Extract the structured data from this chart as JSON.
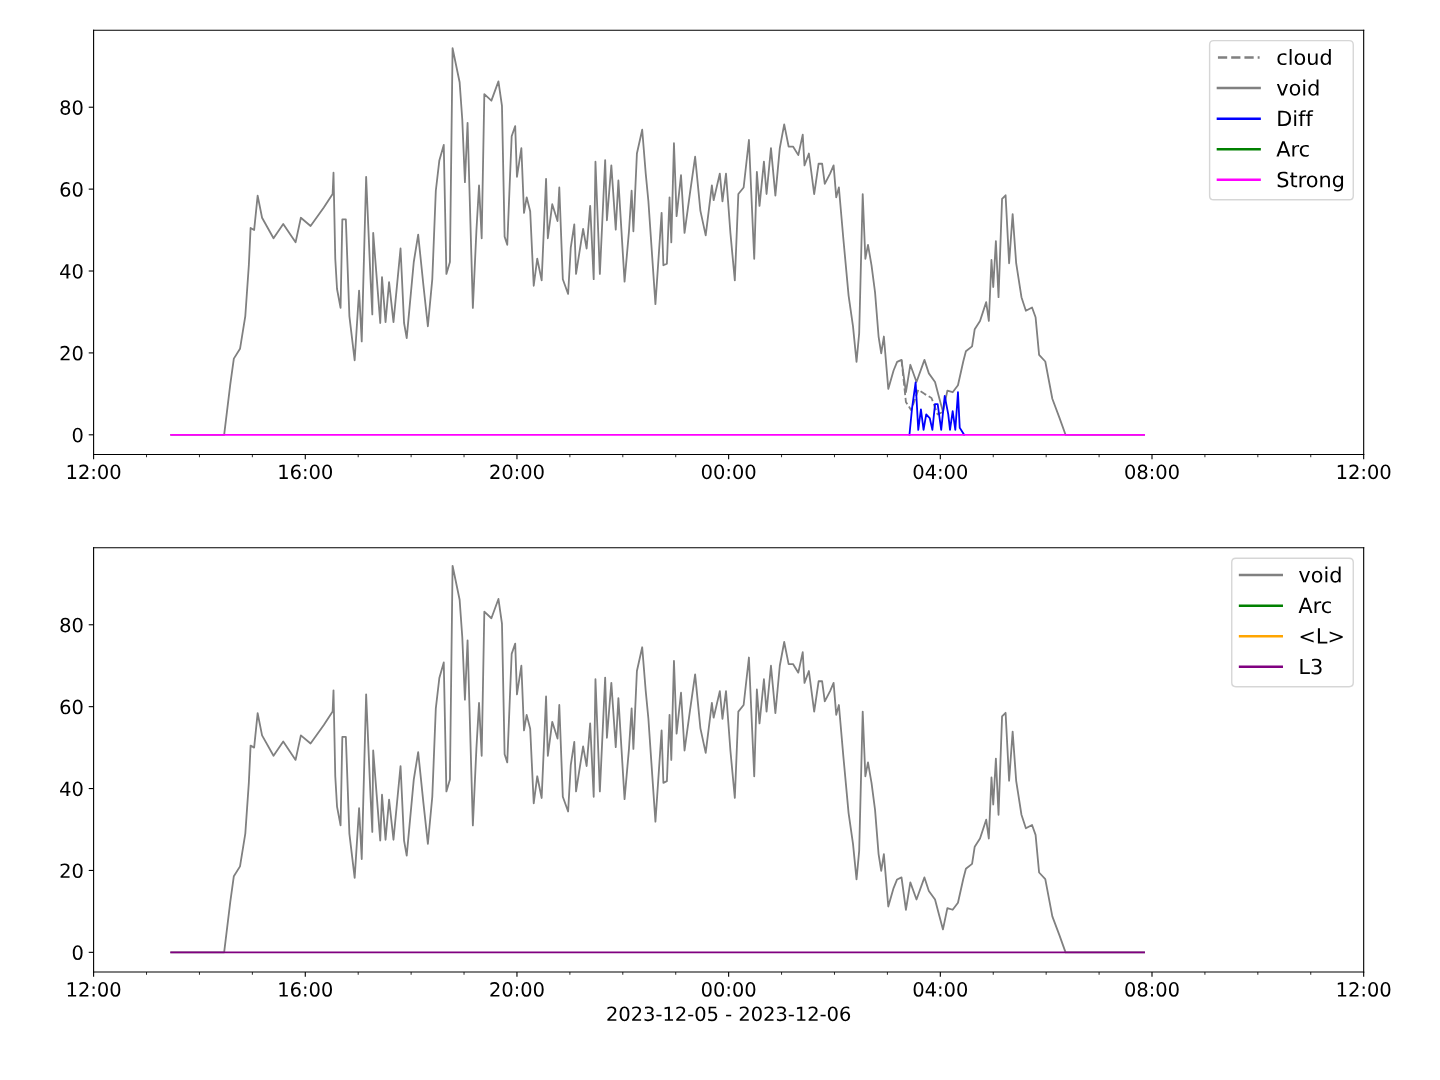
{
  "chart_data": [
    {
      "type": "line",
      "xlim": [
        "2023-12-05T12:00",
        "2023-12-06T12:00"
      ],
      "ylim": [
        -4.8,
        98.8
      ],
      "yticks": [
        0,
        20,
        40,
        60,
        80
      ],
      "xticks": [
        {
          "value": "2023-12-05T12:00",
          "label": "12:00"
        },
        {
          "value": "2023-12-05T16:00",
          "label": "16:00"
        },
        {
          "value": "2023-12-05T20:00",
          "label": "20:00"
        },
        {
          "value": "2023-12-06T00:00",
          "label": "00:00"
        },
        {
          "value": "2023-12-06T04:00",
          "label": "04:00"
        },
        {
          "value": "2023-12-06T08:00",
          "label": "08:00"
        },
        {
          "value": "2023-12-06T12:00",
          "label": "12:00"
        }
      ],
      "legend": "top right",
      "grid": false,
      "series": [
        {
          "name": "cloud",
          "color": "#808080",
          "line_style": "dashed",
          "x": [
            "2023-12-06T03:16",
            "2023-12-06T03:21",
            "2023-12-06T03:27",
            "2023-12-06T03:35",
            "2023-12-06T03:42",
            "2023-12-06T03:50",
            "2023-12-06T03:57",
            "2023-12-06T04:03"
          ],
          "values": [
            18.3,
            8,
            6,
            11,
            10,
            9,
            5,
            5.6
          ]
        },
        {
          "name": "void",
          "color": "#808080",
          "line_style": "solid",
          "x": [
            "2023-12-05T13:28",
            "2023-12-05T14:28",
            "2023-12-05T14:35",
            "2023-12-05T14:39",
            "2023-12-05T14:46",
            "2023-12-05T14:52",
            "2023-12-05T14:56",
            "2023-12-05T14:58",
            "2023-12-05T15:02",
            "2023-12-05T15:06",
            "2023-12-05T15:11",
            "2023-12-05T15:24",
            "2023-12-05T15:35",
            "2023-12-05T15:49",
            "2023-12-05T15:55",
            "2023-12-05T16:06",
            "2023-12-05T16:21",
            "2023-12-05T16:31",
            "2023-12-05T16:32",
            "2023-12-05T16:34",
            "2023-12-05T16:36",
            "2023-12-05T16:40",
            "2023-12-05T16:42",
            "2023-12-05T16:46",
            "2023-12-05T16:50",
            "2023-12-05T16:56",
            "2023-12-05T17:01",
            "2023-12-05T17:04",
            "2023-12-05T17:09",
            "2023-12-05T17:14",
            "2023-12-05T17:16",
            "2023-12-05T17:17",
            "2023-12-05T17:25",
            "2023-12-05T17:27",
            "2023-12-05T17:31",
            "2023-12-05T17:35",
            "2023-12-05T17:40",
            "2023-12-05T17:48",
            "2023-12-05T17:52",
            "2023-12-05T17:55",
            "2023-12-05T18:03",
            "2023-12-05T18:08",
            "2023-12-05T18:14",
            "2023-12-05T18:19",
            "2023-12-05T18:24",
            "2023-12-05T18:28",
            "2023-12-05T18:32",
            "2023-12-05T18:37",
            "2023-12-05T18:40",
            "2023-12-05T18:44",
            "2023-12-05T18:47",
            "2023-12-05T18:55",
            "2023-12-05T18:58",
            "2023-12-05T19:01",
            "2023-12-05T19:04",
            "2023-12-05T19:10",
            "2023-12-05T19:14",
            "2023-12-05T19:17",
            "2023-12-05T19:20",
            "2023-12-05T19:23",
            "2023-12-05T19:31",
            "2023-12-05T19:39",
            "2023-12-05T19:43",
            "2023-12-05T19:46",
            "2023-12-05T19:49",
            "2023-12-05T19:54",
            "2023-12-05T19:58",
            "2023-12-05T20:00",
            "2023-12-05T20:05",
            "2023-12-05T20:08",
            "2023-12-05T20:11",
            "2023-12-05T20:15",
            "2023-12-05T20:19",
            "2023-12-05T20:23",
            "2023-12-05T20:28",
            "2023-12-05T20:33",
            "2023-12-05T20:35",
            "2023-12-05T20:40",
            "2023-12-05T20:46",
            "2023-12-05T20:48",
            "2023-12-05T20:52",
            "2023-12-05T20:58",
            "2023-12-05T21:01",
            "2023-12-05T21:05",
            "2023-12-05T21:07",
            "2023-12-05T21:15",
            "2023-12-05T21:19",
            "2023-12-05T21:23",
            "2023-12-05T21:27",
            "2023-12-05T21:29",
            "2023-12-05T21:34",
            "2023-12-05T21:40",
            "2023-12-05T21:42",
            "2023-12-05T21:47",
            "2023-12-05T21:52",
            "2023-12-05T21:55",
            "2023-12-05T22:02",
            "2023-12-05T22:07",
            "2023-12-05T22:10",
            "2023-12-05T22:12",
            "2023-12-05T22:16",
            "2023-12-05T22:22",
            "2023-12-05T22:26",
            "2023-12-05T22:29",
            "2023-12-05T22:37",
            "2023-12-05T22:44",
            "2023-12-05T22:46",
            "2023-12-05T22:50",
            "2023-12-05T22:53",
            "2023-12-05T22:55",
            "2023-12-05T22:58",
            "2023-12-05T23:01",
            "2023-12-05T23:06",
            "2023-12-05T23:10",
            "2023-12-05T23:16",
            "2023-12-05T23:22",
            "2023-12-05T23:28",
            "2023-12-05T23:34",
            "2023-12-05T23:41",
            "2023-12-05T23:43",
            "2023-12-05T23:50",
            "2023-12-05T23:53",
            "2023-12-05T23:57",
            "2023-12-06T00:02",
            "2023-12-06T00:07",
            "2023-12-06T00:11",
            "2023-12-06T00:17",
            "2023-12-06T00:23",
            "2023-12-06T00:29",
            "2023-12-06T00:32",
            "2023-12-06T00:35",
            "2023-12-06T00:40",
            "2023-12-06T00:43",
            "2023-12-06T00:48",
            "2023-12-06T00:53",
            "2023-12-06T00:58",
            "2023-12-06T01:03",
            "2023-12-06T01:08",
            "2023-12-06T01:13",
            "2023-12-06T01:19",
            "2023-12-06T01:24",
            "2023-12-06T01:26",
            "2023-12-06T01:31",
            "2023-12-06T01:37",
            "2023-12-06T01:42",
            "2023-12-06T01:46",
            "2023-12-06T01:49",
            "2023-12-06T01:55",
            "2023-12-06T01:59",
            "2023-12-06T02:02",
            "2023-12-06T02:05",
            "2023-12-06T02:10",
            "2023-12-06T02:16",
            "2023-12-06T02:21",
            "2023-12-06T02:25",
            "2023-12-06T02:28",
            "2023-12-06T02:32",
            "2023-12-06T02:35",
            "2023-12-06T02:38",
            "2023-12-06T02:42",
            "2023-12-06T02:46",
            "2023-12-06T02:50",
            "2023-12-06T02:53",
            "2023-12-06T02:56",
            "2023-12-06T03:01",
            "2023-12-06T03:07",
            "2023-12-06T03:11",
            "2023-12-06T03:16",
            "2023-12-06T03:21",
            "2023-12-06T03:26",
            "2023-12-06T03:33",
            "2023-12-06T03:42",
            "2023-12-06T03:47",
            "2023-12-06T03:54",
            "2023-12-06T03:59",
            "2023-12-06T04:03",
            "2023-12-06T04:08",
            "2023-12-06T04:14",
            "2023-12-06T04:20",
            "2023-12-06T04:26",
            "2023-12-06T04:29",
            "2023-12-06T04:36",
            "2023-12-06T04:39",
            "2023-12-06T04:45",
            "2023-12-06T04:52",
            "2023-12-06T04:55",
            "2023-12-06T04:58",
            "2023-12-06T05:00",
            "2023-12-06T05:03",
            "2023-12-06T05:06",
            "2023-12-06T05:10",
            "2023-12-06T05:14",
            "2023-12-06T05:18",
            "2023-12-06T05:22",
            "2023-12-06T05:26",
            "2023-12-06T05:32",
            "2023-12-06T05:37",
            "2023-12-06T05:44",
            "2023-12-06T05:48",
            "2023-12-06T05:52",
            "2023-12-06T05:59",
            "2023-12-06T06:07",
            "2023-12-06T06:15",
            "2023-12-06T06:22",
            "2023-12-06T07:51"
          ],
          "values": [
            0,
            0,
            12.4,
            18.6,
            21,
            29,
            41.4,
            50.5,
            50,
            58.4,
            53,
            48,
            51.5,
            47,
            53,
            51,
            55.5,
            58.8,
            64,
            43,
            35.6,
            31,
            52.6,
            52.6,
            29,
            18.2,
            35.2,
            22.8,
            63,
            38,
            29.4,
            49.3,
            27.3,
            38.5,
            27.5,
            37.3,
            27.5,
            45.5,
            27.3,
            23.6,
            42.2,
            48.9,
            36.4,
            26.5,
            38,
            59.6,
            67,
            70.8,
            39.3,
            42.2,
            94.4,
            86.1,
            77,
            61.7,
            76.2,
            31,
            49.7,
            60.9,
            48,
            83.2,
            81.6,
            86.3,
            80.3,
            48.4,
            46.4,
            72.9,
            75.4,
            63,
            70,
            54.2,
            58,
            54.6,
            36.4,
            43,
            37.7,
            62.5,
            48,
            56.3,
            52.2,
            60.4,
            38,
            34.4,
            45.7,
            51.4,
            39.3,
            50.3,
            45.5,
            55.9,
            38,
            66.7,
            39.3,
            67.1,
            52.4,
            65.8,
            50.1,
            62.1,
            37.4,
            49.7,
            59.6,
            49.7,
            68.7,
            74.5,
            63.8,
            57.1,
            31.9,
            54.2,
            41.4,
            41.8,
            58,
            47,
            71.2,
            53.4,
            63.4,
            49.3,
            58.8,
            67.9,
            54.7,
            48.7,
            60.9,
            57.3,
            63.8,
            57,
            63.8,
            49.3,
            37.7,
            58.8,
            60.4,
            72,
            43,
            64.2,
            55.9,
            66.7,
            58.8,
            70,
            58.4,
            70,
            75.8,
            70.4,
            70.4,
            68.3,
            73.3,
            65.8,
            68.7,
            58.8,
            66.2,
            66.2,
            61.3,
            63.8,
            65.8,
            58,
            60.4,
            48,
            34,
            26.5,
            17.8,
            24.8,
            58.8,
            43,
            46.4,
            41.4,
            34.8,
            24,
            19.9,
            24,
            11.2,
            15.7,
            17.8,
            18.3,
            10.4,
            17.1,
            12.9,
            18.3,
            15,
            12.9,
            8.8,
            5.6,
            10.8,
            10.4,
            12.1,
            17.9,
            20.4,
            21.6,
            25.8,
            27.8,
            32.4,
            27.8,
            42.7,
            36.1,
            47.3,
            33.6,
            57.6,
            58.5,
            41.9,
            53.9,
            41.9,
            33.6,
            30.3,
            31.1,
            28.7,
            19.5,
            17.9,
            8.8,
            4.2,
            0,
            0
          ]
        },
        {
          "name": "Diff",
          "color": "#0000ff",
          "line_style": "solid",
          "x": [
            "2023-12-06T03:25",
            "2023-12-06T03:28",
            "2023-12-06T03:32",
            "2023-12-06T03:35",
            "2023-12-06T03:38",
            "2023-12-06T03:41",
            "2023-12-06T03:44",
            "2023-12-06T03:48",
            "2023-12-06T03:51",
            "2023-12-06T03:54",
            "2023-12-06T03:57",
            "2023-12-06T04:01",
            "2023-12-06T04:05",
            "2023-12-06T04:09",
            "2023-12-06T04:11",
            "2023-12-06T04:14",
            "2023-12-06T04:17",
            "2023-12-06T04:20",
            "2023-12-06T04:22",
            "2023-12-06T04:27"
          ],
          "values": [
            0,
            6.6,
            12.8,
            1.2,
            6.2,
            1.2,
            5,
            4.1,
            1.2,
            7.5,
            7.5,
            1.2,
            9.5,
            5,
            1.2,
            5.8,
            1.2,
            10.4,
            1.7,
            0
          ]
        },
        {
          "name": "Arc",
          "color": "#008000",
          "line_style": "solid"
        },
        {
          "name": "Strong",
          "color": "#ff00ff",
          "line_style": "solid",
          "x": [
            "2023-12-05T13:28",
            "2023-12-06T07:51"
          ],
          "values": [
            0,
            0
          ]
        }
      ]
    },
    {
      "type": "line",
      "xlim": [
        "2023-12-05T12:00",
        "2023-12-06T12:00"
      ],
      "ylim": [
        -4.8,
        98.8
      ],
      "yticks": [
        0,
        20,
        40,
        60,
        80
      ],
      "xticks": [
        {
          "value": "2023-12-05T12:00",
          "label": "12:00"
        },
        {
          "value": "2023-12-05T16:00",
          "label": "16:00"
        },
        {
          "value": "2023-12-05T20:00",
          "label": "20:00"
        },
        {
          "value": "2023-12-06T00:00",
          "label": "00:00"
        },
        {
          "value": "2023-12-06T04:00",
          "label": "04:00"
        },
        {
          "value": "2023-12-06T08:00",
          "label": "08:00"
        },
        {
          "value": "2023-12-06T12:00",
          "label": "12:00"
        }
      ],
      "xlabel": "2023-12-05 - 2023-12-06",
      "legend": "top right",
      "grid": false,
      "series": [
        {
          "name": "void",
          "color": "#808080",
          "line_style": "solid",
          "x": [
            "2023-12-05T13:28",
            "2023-12-05T14:28",
            "2023-12-05T14:35",
            "2023-12-05T14:39",
            "2023-12-05T14:46",
            "2023-12-05T14:52",
            "2023-12-05T14:56",
            "2023-12-05T14:58",
            "2023-12-05T15:02",
            "2023-12-05T15:06",
            "2023-12-05T15:11",
            "2023-12-05T15:24",
            "2023-12-05T15:35",
            "2023-12-05T15:49",
            "2023-12-05T15:55",
            "2023-12-05T16:06",
            "2023-12-05T16:21",
            "2023-12-05T16:31",
            "2023-12-05T16:32",
            "2023-12-05T16:34",
            "2023-12-05T16:36",
            "2023-12-05T16:40",
            "2023-12-05T16:42",
            "2023-12-05T16:46",
            "2023-12-05T16:50",
            "2023-12-05T16:56",
            "2023-12-05T17:01",
            "2023-12-05T17:04",
            "2023-12-05T17:09",
            "2023-12-05T17:14",
            "2023-12-05T17:16",
            "2023-12-05T17:17",
            "2023-12-05T17:25",
            "2023-12-05T17:27",
            "2023-12-05T17:31",
            "2023-12-05T17:35",
            "2023-12-05T17:40",
            "2023-12-05T17:48",
            "2023-12-05T17:52",
            "2023-12-05T17:55",
            "2023-12-05T18:03",
            "2023-12-05T18:08",
            "2023-12-05T18:14",
            "2023-12-05T18:19",
            "2023-12-05T18:24",
            "2023-12-05T18:28",
            "2023-12-05T18:32",
            "2023-12-05T18:37",
            "2023-12-05T18:40",
            "2023-12-05T18:44",
            "2023-12-05T18:47",
            "2023-12-05T18:55",
            "2023-12-05T18:58",
            "2023-12-05T19:01",
            "2023-12-05T19:04",
            "2023-12-05T19:10",
            "2023-12-05T19:14",
            "2023-12-05T19:17",
            "2023-12-05T19:20",
            "2023-12-05T19:23",
            "2023-12-05T19:31",
            "2023-12-05T19:39",
            "2023-12-05T19:43",
            "2023-12-05T19:46",
            "2023-12-05T19:49",
            "2023-12-05T19:54",
            "2023-12-05T19:58",
            "2023-12-05T20:00",
            "2023-12-05T20:05",
            "2023-12-05T20:08",
            "2023-12-05T20:11",
            "2023-12-05T20:15",
            "2023-12-05T20:19",
            "2023-12-05T20:23",
            "2023-12-05T20:28",
            "2023-12-05T20:33",
            "2023-12-05T20:35",
            "2023-12-05T20:40",
            "2023-12-05T20:46",
            "2023-12-05T20:48",
            "2023-12-05T20:52",
            "2023-12-05T20:58",
            "2023-12-05T21:01",
            "2023-12-05T21:05",
            "2023-12-05T21:07",
            "2023-12-05T21:15",
            "2023-12-05T21:19",
            "2023-12-05T21:23",
            "2023-12-05T21:27",
            "2023-12-05T21:29",
            "2023-12-05T21:34",
            "2023-12-05T21:40",
            "2023-12-05T21:42",
            "2023-12-05T21:47",
            "2023-12-05T21:52",
            "2023-12-05T21:55",
            "2023-12-05T22:02",
            "2023-12-05T22:07",
            "2023-12-05T22:10",
            "2023-12-05T22:12",
            "2023-12-05T22:16",
            "2023-12-05T22:22",
            "2023-12-05T22:26",
            "2023-12-05T22:29",
            "2023-12-05T22:37",
            "2023-12-05T22:44",
            "2023-12-05T22:46",
            "2023-12-05T22:50",
            "2023-12-05T22:53",
            "2023-12-05T22:55",
            "2023-12-05T22:58",
            "2023-12-05T23:01",
            "2023-12-05T23:06",
            "2023-12-05T23:10",
            "2023-12-05T23:16",
            "2023-12-05T23:22",
            "2023-12-05T23:28",
            "2023-12-05T23:34",
            "2023-12-05T23:41",
            "2023-12-05T23:43",
            "2023-12-05T23:50",
            "2023-12-05T23:53",
            "2023-12-05T23:57",
            "2023-12-06T00:02",
            "2023-12-06T00:07",
            "2023-12-06T00:11",
            "2023-12-06T00:17",
            "2023-12-06T00:23",
            "2023-12-06T00:29",
            "2023-12-06T00:32",
            "2023-12-06T00:35",
            "2023-12-06T00:40",
            "2023-12-06T00:43",
            "2023-12-06T00:48",
            "2023-12-06T00:53",
            "2023-12-06T00:58",
            "2023-12-06T01:03",
            "2023-12-06T01:08",
            "2023-12-06T01:13",
            "2023-12-06T01:19",
            "2023-12-06T01:24",
            "2023-12-06T01:26",
            "2023-12-06T01:31",
            "2023-12-06T01:37",
            "2023-12-06T01:42",
            "2023-12-06T01:46",
            "2023-12-06T01:49",
            "2023-12-06T01:55",
            "2023-12-06T01:59",
            "2023-12-06T02:02",
            "2023-12-06T02:05",
            "2023-12-06T02:10",
            "2023-12-06T02:16",
            "2023-12-06T02:21",
            "2023-12-06T02:25",
            "2023-12-06T02:28",
            "2023-12-06T02:32",
            "2023-12-06T02:35",
            "2023-12-06T02:38",
            "2023-12-06T02:42",
            "2023-12-06T02:46",
            "2023-12-06T02:50",
            "2023-12-06T02:53",
            "2023-12-06T02:56",
            "2023-12-06T03:01",
            "2023-12-06T03:07",
            "2023-12-06T03:11",
            "2023-12-06T03:16",
            "2023-12-06T03:21",
            "2023-12-06T03:26",
            "2023-12-06T03:33",
            "2023-12-06T03:42",
            "2023-12-06T03:47",
            "2023-12-06T03:54",
            "2023-12-06T03:59",
            "2023-12-06T04:03",
            "2023-12-06T04:08",
            "2023-12-06T04:14",
            "2023-12-06T04:20",
            "2023-12-06T04:26",
            "2023-12-06T04:29",
            "2023-12-06T04:36",
            "2023-12-06T04:39",
            "2023-12-06T04:45",
            "2023-12-06T04:52",
            "2023-12-06T04:55",
            "2023-12-06T04:58",
            "2023-12-06T05:00",
            "2023-12-06T05:03",
            "2023-12-06T05:06",
            "2023-12-06T05:10",
            "2023-12-06T05:14",
            "2023-12-06T05:18",
            "2023-12-06T05:22",
            "2023-12-06T05:26",
            "2023-12-06T05:32",
            "2023-12-06T05:37",
            "2023-12-06T05:44",
            "2023-12-06T05:48",
            "2023-12-06T05:52",
            "2023-12-06T05:59",
            "2023-12-06T06:07",
            "2023-12-06T06:15",
            "2023-12-06T06:22",
            "2023-12-06T07:51"
          ],
          "values": [
            0,
            0,
            12.4,
            18.6,
            21,
            29,
            41.4,
            50.5,
            50,
            58.4,
            53,
            48,
            51.5,
            47,
            53,
            51,
            55.5,
            58.8,
            64,
            43,
            35.6,
            31,
            52.6,
            52.6,
            29,
            18.2,
            35.2,
            22.8,
            63,
            38,
            29.4,
            49.3,
            27.3,
            38.5,
            27.5,
            37.3,
            27.5,
            45.5,
            27.3,
            23.6,
            42.2,
            48.9,
            36.4,
            26.5,
            38,
            59.6,
            67,
            70.8,
            39.3,
            42.2,
            94.4,
            86.1,
            77,
            61.7,
            76.2,
            31,
            49.7,
            60.9,
            48,
            83.2,
            81.6,
            86.3,
            80.3,
            48.4,
            46.4,
            72.9,
            75.4,
            63,
            70,
            54.2,
            58,
            54.6,
            36.4,
            43,
            37.7,
            62.5,
            48,
            56.3,
            52.2,
            60.4,
            38,
            34.4,
            45.7,
            51.4,
            39.3,
            50.3,
            45.5,
            55.9,
            38,
            66.7,
            39.3,
            67.1,
            52.4,
            65.8,
            50.1,
            62.1,
            37.4,
            49.7,
            59.6,
            49.7,
            68.7,
            74.5,
            63.8,
            57.1,
            31.9,
            54.2,
            41.4,
            41.8,
            58,
            47,
            71.2,
            53.4,
            63.4,
            49.3,
            58.8,
            67.9,
            54.7,
            48.7,
            60.9,
            57.3,
            63.8,
            57,
            63.8,
            49.3,
            37.7,
            58.8,
            60.4,
            72,
            43,
            64.2,
            55.9,
            66.7,
            58.8,
            70,
            58.4,
            70,
            75.8,
            70.4,
            70.4,
            68.3,
            73.3,
            65.8,
            68.7,
            58.8,
            66.2,
            66.2,
            61.3,
            63.8,
            65.8,
            58,
            60.4,
            48,
            34,
            26.5,
            17.8,
            24.8,
            58.8,
            43,
            46.4,
            41.4,
            34.8,
            24,
            19.9,
            24,
            11.2,
            15.7,
            17.8,
            18.3,
            10.4,
            17.1,
            12.9,
            18.3,
            15,
            12.9,
            8.8,
            5.6,
            10.8,
            10.4,
            12.1,
            17.9,
            20.4,
            21.6,
            25.8,
            27.8,
            32.4,
            27.8,
            42.7,
            36.1,
            47.3,
            33.6,
            57.6,
            58.5,
            41.9,
            53.9,
            41.9,
            33.6,
            30.3,
            31.1,
            28.7,
            19.5,
            17.9,
            8.8,
            4.2,
            0,
            0
          ]
        },
        {
          "name": "Arc",
          "color": "#008000",
          "line_style": "solid"
        },
        {
          "name": "<L>",
          "color": "#ffa500",
          "line_style": "solid"
        },
        {
          "name": "L3",
          "color": "#800080",
          "line_style": "solid",
          "x": [
            "2023-12-05T13:28",
            "2023-12-06T07:51"
          ],
          "values": [
            0,
            0
          ]
        }
      ]
    }
  ]
}
